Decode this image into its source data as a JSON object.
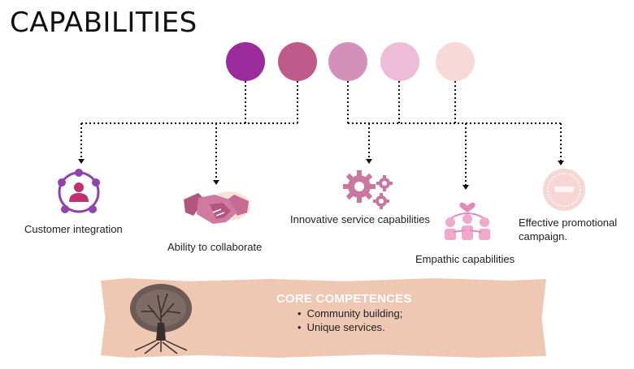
{
  "title": "CAPABILITIES",
  "circles": [
    {
      "color": "#9b2a9a"
    },
    {
      "color": "#bf5b8a"
    },
    {
      "color": "#d391b9"
    },
    {
      "color": "#eebbd9"
    },
    {
      "color": "#f7d9d9"
    }
  ],
  "capabilities": [
    {
      "label": "Customer integration",
      "icon": "customer-integration-icon"
    },
    {
      "label": "Ability to collaborate",
      "icon": "handshake-icon"
    },
    {
      "label": "Innovative service capabilities",
      "icon": "gears-icon"
    },
    {
      "label": "Empathic capabilities",
      "icon": "people-heart-icon"
    },
    {
      "label": "Effective promotional campaign.",
      "icon": "badge-icon"
    }
  ],
  "core": {
    "title": "CORE COMPETENCES",
    "items": [
      "Community building;",
      "Unique services."
    ],
    "icon": "tree-icon"
  },
  "colors": {
    "accent_purple": "#8e44ad",
    "accent_pink": "#c2578f",
    "banner": "#efc8b4"
  }
}
